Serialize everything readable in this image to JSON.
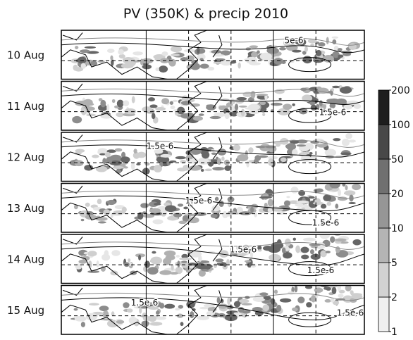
{
  "title": "PV (350K) & precip   2010",
  "panels": [
    {
      "label": "10 Aug",
      "contour_labels": [
        "5e-6"
      ]
    },
    {
      "label": "11 Aug",
      "contour_labels": [
        "1.5e-6"
      ]
    },
    {
      "label": "12 Aug",
      "contour_labels": [
        "1.5e-6"
      ]
    },
    {
      "label": "13 Aug",
      "contour_labels": [
        "1.5e-6",
        "1.5e-6"
      ]
    },
    {
      "label": "14 Aug",
      "contour_labels": [
        "1.5e-6",
        "1.5e-6"
      ]
    },
    {
      "label": "15 Aug",
      "contour_labels": [
        "1.5e-6",
        "1.5e-6"
      ]
    }
  ],
  "colorbar": {
    "ticks": [
      1,
      2,
      5,
      10,
      20,
      50,
      100,
      200
    ],
    "colors": [
      "#f0f0f0",
      "#d2d2d2",
      "#b4b4b4",
      "#969696",
      "#707070",
      "#484848",
      "#1e1e1e"
    ]
  }
}
